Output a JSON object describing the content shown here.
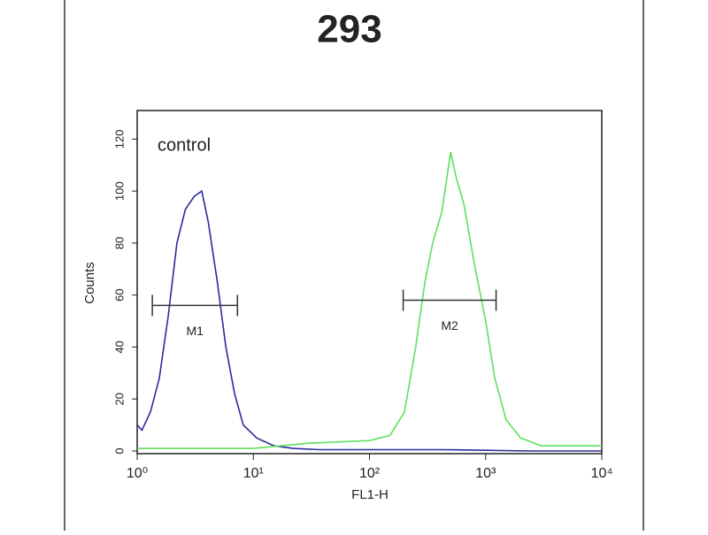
{
  "chart_data": {
    "type": "line",
    "title": "293",
    "x_label": "FL1-H",
    "y_label": "Counts",
    "log_x": true,
    "xlim": [
      1,
      10000
    ],
    "xticks": [
      {
        "value": 1,
        "label": "10⁰"
      },
      {
        "value": 10,
        "label": "10¹"
      },
      {
        "value": 100,
        "label": "10²"
      },
      {
        "value": 1000,
        "label": "10³"
      },
      {
        "value": 10000,
        "label": "10⁴"
      }
    ],
    "ylim": [
      0,
      131
    ],
    "yticks": [
      0,
      20,
      40,
      60,
      80,
      100,
      120
    ],
    "annotation": "control",
    "series": [
      {
        "name": "control",
        "color": "#2b2b9c",
        "x": [
          1,
          1.1,
          1.3,
          1.55,
          1.85,
          2.2,
          2.6,
          3.1,
          3.6,
          4.1,
          4.9,
          5.8,
          6.9,
          8.2,
          10.7,
          15,
          22,
          37,
          74,
          430,
          2500,
          10000
        ],
        "values": [
          10,
          8,
          15,
          28,
          52,
          80,
          93,
          98,
          100,
          88,
          65,
          40,
          22,
          10,
          5,
          2,
          1,
          0.5,
          0.5,
          0.5,
          0,
          0
        ]
      },
      {
        "color": "#5ee05e",
        "x": [
          1,
          10,
          30,
          100,
          150,
          200,
          250,
          300,
          350,
          420,
          500,
          560,
          650,
          800,
          1000,
          1200,
          1500,
          2000,
          3000,
          10000
        ],
        "values": [
          1,
          1,
          3,
          4,
          6,
          15,
          40,
          65,
          80,
          92,
          115,
          105,
          95,
          72,
          50,
          28,
          12,
          5,
          2,
          2
        ]
      }
    ],
    "markers": [
      {
        "label": "M1",
        "range": [
          1.35,
          7.3
        ],
        "y": 56
      },
      {
        "label": "M2",
        "range": [
          195,
          1230
        ],
        "y": 58
      }
    ]
  }
}
